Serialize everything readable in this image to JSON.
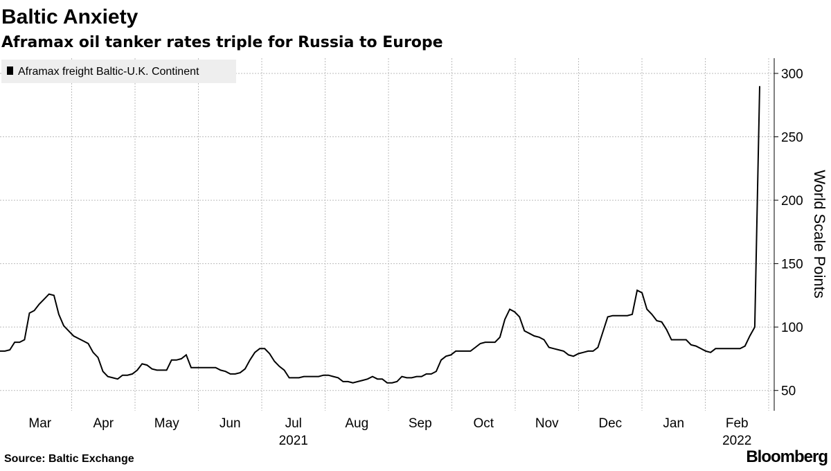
{
  "chart_data": {
    "type": "line",
    "title": "Baltic Anxiety",
    "subtitle": "Aframax oil tanker rates triple for Russia to Europe",
    "y_label": "World Scale Points",
    "source": "Source: Baltic Exchange",
    "brand": "Bloomberg",
    "months": [
      "Mar",
      "Apr",
      "May",
      "Jun",
      "Jul",
      "Aug",
      "Sep",
      "Oct",
      "Nov",
      "Dec",
      "Jan",
      "Feb"
    ],
    "years": [
      "2021",
      "2022"
    ],
    "series": [
      {
        "name": "Aframax freight Baltic-U.K. Continent",
        "color": "#000000",
        "values": [
          81,
          81,
          82,
          88,
          88,
          90,
          111,
          113,
          118,
          122,
          126,
          125,
          110,
          101,
          97,
          93,
          91,
          89,
          87,
          80,
          76,
          65,
          61,
          60,
          59,
          62,
          62,
          63,
          66,
          71,
          70,
          67,
          66,
          66,
          66,
          74,
          74,
          75,
          78,
          68,
          68,
          68,
          68,
          68,
          68,
          66,
          65,
          63,
          63,
          64,
          67,
          74,
          80,
          83,
          83,
          79,
          73,
          69,
          66,
          60,
          60,
          60,
          61,
          61,
          61,
          61,
          62,
          62,
          61,
          60,
          57,
          57,
          56,
          57,
          58,
          59,
          61,
          59,
          59,
          56,
          56,
          57,
          61,
          60,
          60,
          61,
          61,
          63,
          63,
          65,
          74,
          77,
          78,
          81,
          81,
          81,
          81,
          84,
          87,
          88,
          88,
          88,
          92,
          106,
          114,
          112,
          108,
          97,
          95,
          93,
          92,
          90,
          84,
          83,
          82,
          81,
          78,
          77,
          79,
          80,
          81,
          81,
          84,
          96,
          108,
          109,
          109,
          109,
          109,
          110,
          129,
          127,
          114,
          110,
          105,
          104,
          98,
          90,
          90,
          90,
          90,
          86,
          85,
          83,
          81,
          80,
          83,
          83,
          83,
          83,
          83,
          83,
          85,
          93,
          100,
          290
        ]
      }
    ],
    "ylim": [
      34,
      312
    ],
    "yticks": [
      50,
      100,
      150,
      200,
      250,
      300
    ],
    "grid": true
  }
}
